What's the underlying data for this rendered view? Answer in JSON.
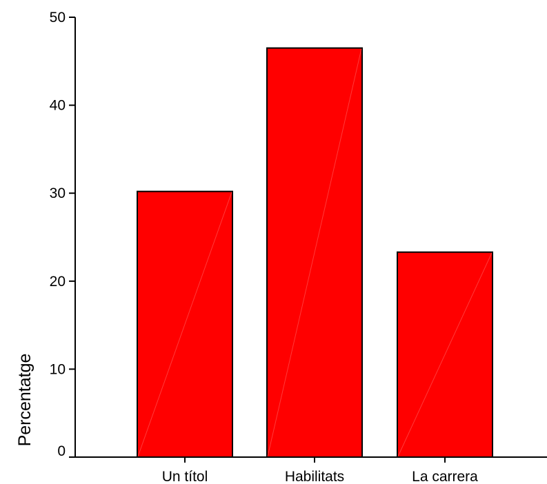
{
  "chart_data": {
    "type": "bar",
    "title": "",
    "xlabel": "",
    "ylabel": "Percentatge",
    "categories": [
      "Un títol",
      "Habilitats",
      "La carrera"
    ],
    "values": [
      30.2,
      46.5,
      23.3
    ],
    "ylim": [
      0,
      50
    ],
    "yticks": [
      0,
      10,
      20,
      30,
      40,
      50
    ],
    "grid": false,
    "legend": "none",
    "bar_color": "#ff0000",
    "bar_edge_color": "#000000"
  }
}
